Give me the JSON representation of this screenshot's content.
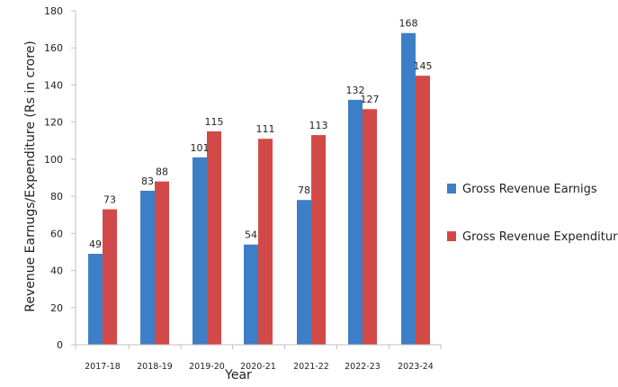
{
  "chart_data": {
    "type": "bar",
    "xlabel": "Year",
    "ylabel": "Revenue Earnugs/Expenditure (Rs in crore)",
    "ylim": [
      0,
      180
    ],
    "yticks": [
      0,
      20,
      40,
      60,
      80,
      100,
      120,
      140,
      160,
      180
    ],
    "categories": [
      "2017-18",
      "2018-19",
      "2019-20",
      "2020-21",
      "2021-22",
      "2022-23",
      "2023-24"
    ],
    "series": [
      {
        "name": "Gross Revenue Earnigs",
        "color": "#3c7fc6",
        "values": [
          49,
          83,
          101,
          54,
          78,
          132,
          168
        ]
      },
      {
        "name": "Gross Revenue Expenditure",
        "color": "#d24a47",
        "values": [
          73,
          88,
          115,
          111,
          113,
          127,
          145
        ]
      }
    ],
    "grid": false,
    "legend_position": "right"
  }
}
